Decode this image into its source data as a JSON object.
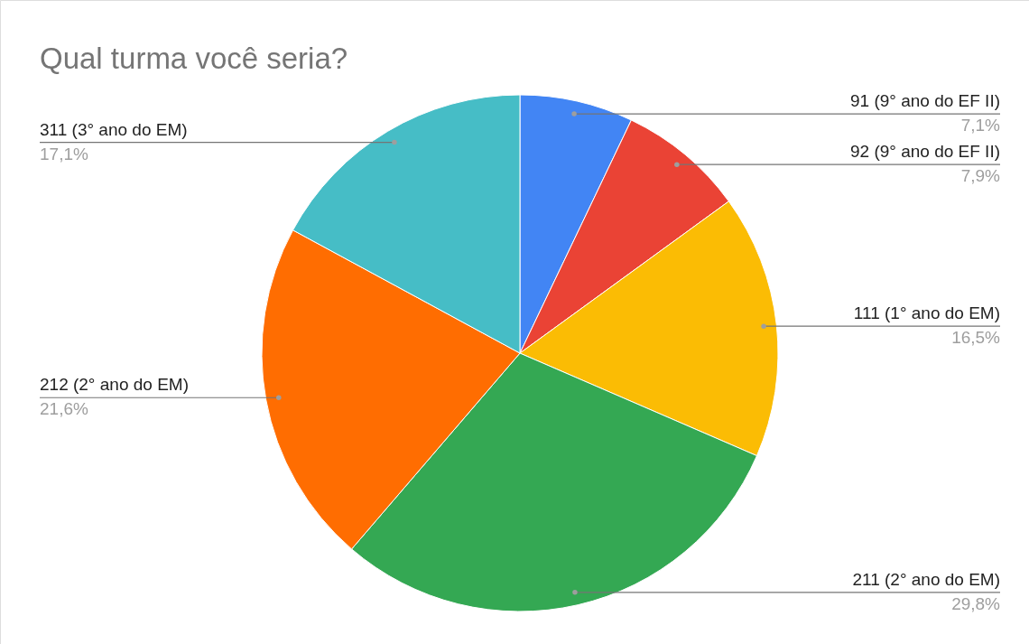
{
  "chart_data": {
    "type": "pie",
    "title": "Qual turma você seria?",
    "categories": [
      "91 (9° ano do EF II)",
      "92 (9° ano do EF II)",
      "111 (1° ano do EM)",
      "211  (2° ano do EM)",
      "212 (2° ano do EM)",
      "311 (3° ano do EM)"
    ],
    "values": [
      7.1,
      7.9,
      16.5,
      29.8,
      21.6,
      17.1
    ],
    "value_labels": [
      "7,1%",
      "7,9%",
      "16,5%",
      "29,8%",
      "21,6%",
      "17,1%"
    ],
    "colors": [
      "#4285f4",
      "#ea4335",
      "#fbbc04",
      "#34a853",
      "#ff6d01",
      "#46bdc6"
    ]
  }
}
